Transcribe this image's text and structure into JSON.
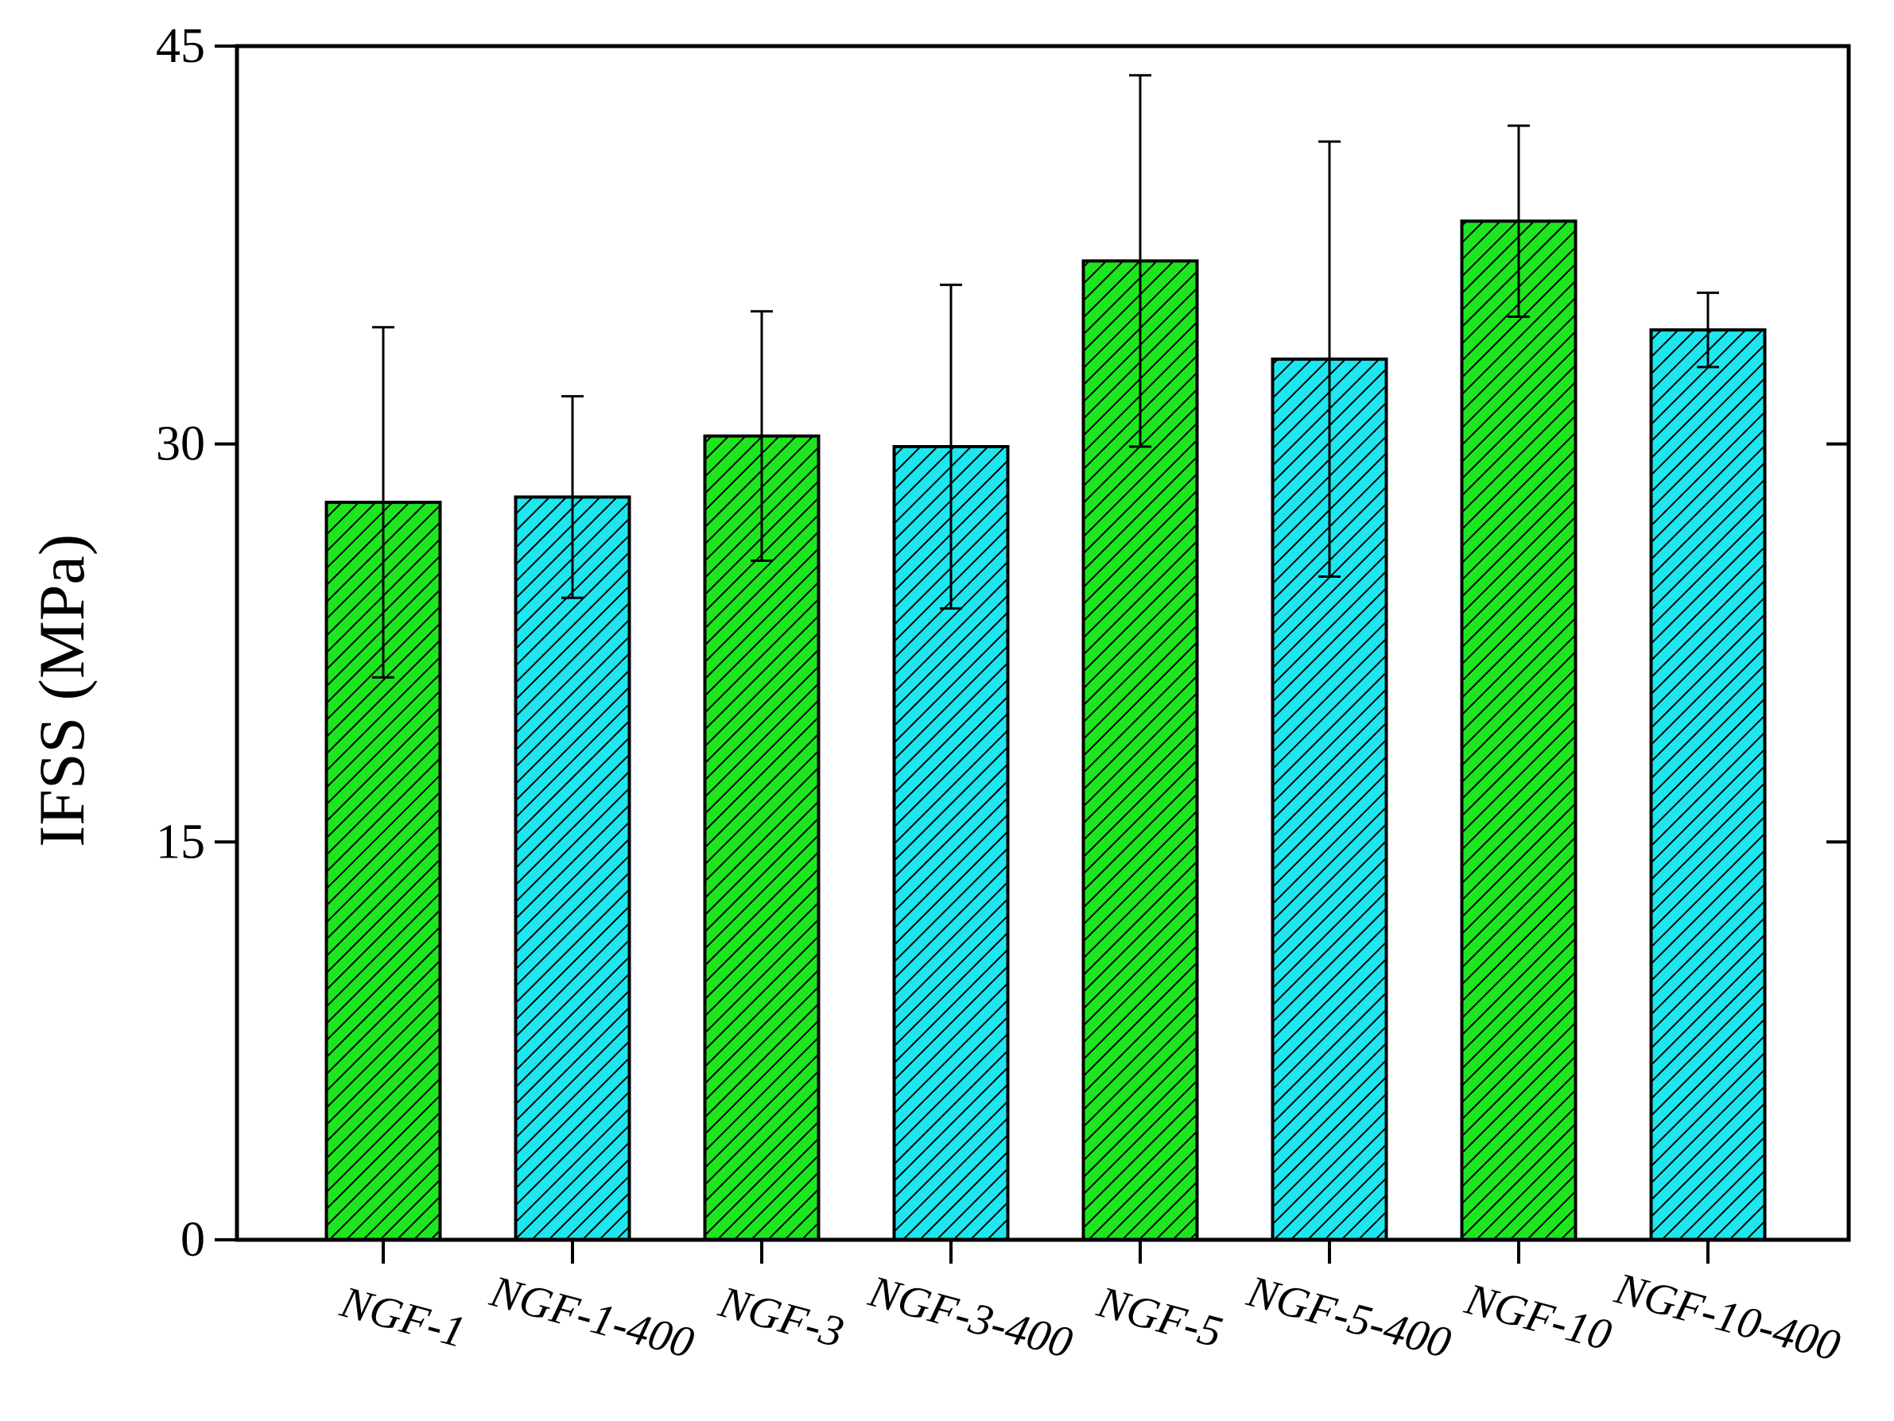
{
  "chart_data": {
    "type": "bar",
    "title": "",
    "xlabel": "",
    "ylabel": "IFSS (MPa)",
    "ylim": [
      0,
      45
    ],
    "yticks": [
      0,
      15,
      30,
      45
    ],
    "grid": false,
    "categories": [
      "NGF-1",
      "NGF-1-400",
      "NGF-3",
      "NGF-3-400",
      "NGF-5",
      "NGF-5-400",
      "NGF-10",
      "NGF-10-400"
    ],
    "values": [
      27.8,
      28.0,
      30.3,
      29.9,
      36.9,
      33.2,
      38.4,
      34.3
    ],
    "error": [
      6.6,
      3.8,
      4.7,
      6.1,
      7.0,
      8.2,
      3.6,
      1.4
    ],
    "colors": [
      "#1ee61e",
      "#1ee6ee",
      "#1ee61e",
      "#1ee6ee",
      "#1ee61e",
      "#1ee6ee",
      "#1ee61e",
      "#1ee6ee"
    ],
    "hatch": "diagonal"
  }
}
